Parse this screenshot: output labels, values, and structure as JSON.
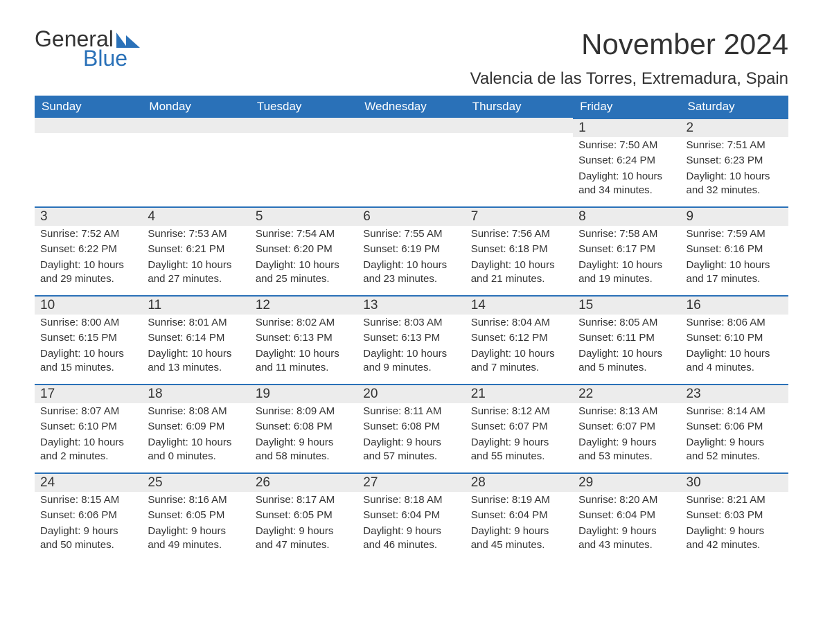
{
  "logo": {
    "text1": "General",
    "text2": "Blue"
  },
  "title": "November 2024",
  "location": "Valencia de las Torres, Extremadura, Spain",
  "colors": {
    "header_bg": "#2a71b8",
    "header_text": "#ffffff",
    "day_bg": "#ececec",
    "day_border": "#2a71b8",
    "body_text": "#333333",
    "page_bg": "#ffffff"
  },
  "day_headers": [
    "Sunday",
    "Monday",
    "Tuesday",
    "Wednesday",
    "Thursday",
    "Friday",
    "Saturday"
  ],
  "weeks": [
    [
      null,
      null,
      null,
      null,
      null,
      {
        "num": "1",
        "sunrise": "Sunrise: 7:50 AM",
        "sunset": "Sunset: 6:24 PM",
        "daylight": "Daylight: 10 hours and 34 minutes."
      },
      {
        "num": "2",
        "sunrise": "Sunrise: 7:51 AM",
        "sunset": "Sunset: 6:23 PM",
        "daylight": "Daylight: 10 hours and 32 minutes."
      }
    ],
    [
      {
        "num": "3",
        "sunrise": "Sunrise: 7:52 AM",
        "sunset": "Sunset: 6:22 PM",
        "daylight": "Daylight: 10 hours and 29 minutes."
      },
      {
        "num": "4",
        "sunrise": "Sunrise: 7:53 AM",
        "sunset": "Sunset: 6:21 PM",
        "daylight": "Daylight: 10 hours and 27 minutes."
      },
      {
        "num": "5",
        "sunrise": "Sunrise: 7:54 AM",
        "sunset": "Sunset: 6:20 PM",
        "daylight": "Daylight: 10 hours and 25 minutes."
      },
      {
        "num": "6",
        "sunrise": "Sunrise: 7:55 AM",
        "sunset": "Sunset: 6:19 PM",
        "daylight": "Daylight: 10 hours and 23 minutes."
      },
      {
        "num": "7",
        "sunrise": "Sunrise: 7:56 AM",
        "sunset": "Sunset: 6:18 PM",
        "daylight": "Daylight: 10 hours and 21 minutes."
      },
      {
        "num": "8",
        "sunrise": "Sunrise: 7:58 AM",
        "sunset": "Sunset: 6:17 PM",
        "daylight": "Daylight: 10 hours and 19 minutes."
      },
      {
        "num": "9",
        "sunrise": "Sunrise: 7:59 AM",
        "sunset": "Sunset: 6:16 PM",
        "daylight": "Daylight: 10 hours and 17 minutes."
      }
    ],
    [
      {
        "num": "10",
        "sunrise": "Sunrise: 8:00 AM",
        "sunset": "Sunset: 6:15 PM",
        "daylight": "Daylight: 10 hours and 15 minutes."
      },
      {
        "num": "11",
        "sunrise": "Sunrise: 8:01 AM",
        "sunset": "Sunset: 6:14 PM",
        "daylight": "Daylight: 10 hours and 13 minutes."
      },
      {
        "num": "12",
        "sunrise": "Sunrise: 8:02 AM",
        "sunset": "Sunset: 6:13 PM",
        "daylight": "Daylight: 10 hours and 11 minutes."
      },
      {
        "num": "13",
        "sunrise": "Sunrise: 8:03 AM",
        "sunset": "Sunset: 6:13 PM",
        "daylight": "Daylight: 10 hours and 9 minutes."
      },
      {
        "num": "14",
        "sunrise": "Sunrise: 8:04 AM",
        "sunset": "Sunset: 6:12 PM",
        "daylight": "Daylight: 10 hours and 7 minutes."
      },
      {
        "num": "15",
        "sunrise": "Sunrise: 8:05 AM",
        "sunset": "Sunset: 6:11 PM",
        "daylight": "Daylight: 10 hours and 5 minutes."
      },
      {
        "num": "16",
        "sunrise": "Sunrise: 8:06 AM",
        "sunset": "Sunset: 6:10 PM",
        "daylight": "Daylight: 10 hours and 4 minutes."
      }
    ],
    [
      {
        "num": "17",
        "sunrise": "Sunrise: 8:07 AM",
        "sunset": "Sunset: 6:10 PM",
        "daylight": "Daylight: 10 hours and 2 minutes."
      },
      {
        "num": "18",
        "sunrise": "Sunrise: 8:08 AM",
        "sunset": "Sunset: 6:09 PM",
        "daylight": "Daylight: 10 hours and 0 minutes."
      },
      {
        "num": "19",
        "sunrise": "Sunrise: 8:09 AM",
        "sunset": "Sunset: 6:08 PM",
        "daylight": "Daylight: 9 hours and 58 minutes."
      },
      {
        "num": "20",
        "sunrise": "Sunrise: 8:11 AM",
        "sunset": "Sunset: 6:08 PM",
        "daylight": "Daylight: 9 hours and 57 minutes."
      },
      {
        "num": "21",
        "sunrise": "Sunrise: 8:12 AM",
        "sunset": "Sunset: 6:07 PM",
        "daylight": "Daylight: 9 hours and 55 minutes."
      },
      {
        "num": "22",
        "sunrise": "Sunrise: 8:13 AM",
        "sunset": "Sunset: 6:07 PM",
        "daylight": "Daylight: 9 hours and 53 minutes."
      },
      {
        "num": "23",
        "sunrise": "Sunrise: 8:14 AM",
        "sunset": "Sunset: 6:06 PM",
        "daylight": "Daylight: 9 hours and 52 minutes."
      }
    ],
    [
      {
        "num": "24",
        "sunrise": "Sunrise: 8:15 AM",
        "sunset": "Sunset: 6:06 PM",
        "daylight": "Daylight: 9 hours and 50 minutes."
      },
      {
        "num": "25",
        "sunrise": "Sunrise: 8:16 AM",
        "sunset": "Sunset: 6:05 PM",
        "daylight": "Daylight: 9 hours and 49 minutes."
      },
      {
        "num": "26",
        "sunrise": "Sunrise: 8:17 AM",
        "sunset": "Sunset: 6:05 PM",
        "daylight": "Daylight: 9 hours and 47 minutes."
      },
      {
        "num": "27",
        "sunrise": "Sunrise: 8:18 AM",
        "sunset": "Sunset: 6:04 PM",
        "daylight": "Daylight: 9 hours and 46 minutes."
      },
      {
        "num": "28",
        "sunrise": "Sunrise: 8:19 AM",
        "sunset": "Sunset: 6:04 PM",
        "daylight": "Daylight: 9 hours and 45 minutes."
      },
      {
        "num": "29",
        "sunrise": "Sunrise: 8:20 AM",
        "sunset": "Sunset: 6:04 PM",
        "daylight": "Daylight: 9 hours and 43 minutes."
      },
      {
        "num": "30",
        "sunrise": "Sunrise: 8:21 AM",
        "sunset": "Sunset: 6:03 PM",
        "daylight": "Daylight: 9 hours and 42 minutes."
      }
    ]
  ]
}
